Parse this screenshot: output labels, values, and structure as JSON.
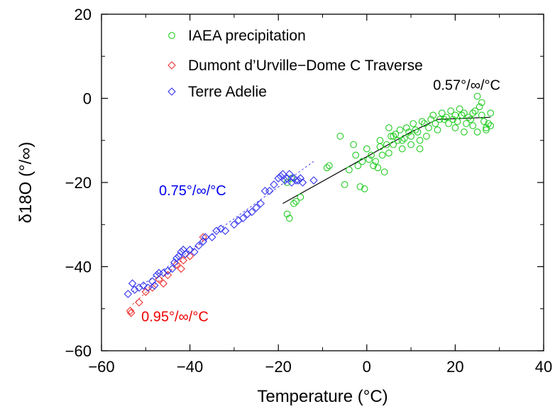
{
  "chart_data": {
    "type": "scatter",
    "title": "",
    "xlabel": "Temperature (°C)",
    "ylabel": "δ18O (°/∞)",
    "xlim": [
      -60,
      40
    ],
    "ylim": [
      -60,
      20
    ],
    "xticks": [
      -60,
      -40,
      -20,
      0,
      20,
      40
    ],
    "yticks": [
      -60,
      -40,
      -20,
      0,
      20
    ],
    "xtick_labels": [
      "−60",
      "−40",
      "−20",
      "0",
      "20",
      "40"
    ],
    "ytick_labels": [
      "−60",
      "−40",
      "−20",
      "0",
      "20"
    ],
    "legend_position": "top-center",
    "series": [
      {
        "name": "IAEA precipitation",
        "marker": "circle",
        "color": "#22cc22",
        "points": [
          [
            -18,
            -27.5
          ],
          [
            -17.5,
            -28.5
          ],
          [
            -16.5,
            -25
          ],
          [
            -16,
            -24.5
          ],
          [
            -15,
            -23.5
          ],
          [
            -18,
            -20
          ],
          [
            -17,
            -19
          ],
          [
            -9,
            -16.5
          ],
          [
            -8.5,
            -16
          ],
          [
            -6,
            -9
          ],
          [
            -5,
            -20.5
          ],
          [
            -4,
            -17
          ],
          [
            -3,
            -11
          ],
          [
            -2.5,
            -13.5
          ],
          [
            -2,
            -16
          ],
          [
            -1.5,
            -21
          ],
          [
            -1,
            -15
          ],
          [
            -0.5,
            -21.5
          ],
          [
            0,
            -12
          ],
          [
            0.5,
            -14.5
          ],
          [
            1,
            -13.5
          ],
          [
            1.5,
            -16
          ],
          [
            2,
            -15
          ],
          [
            2.5,
            -16.5
          ],
          [
            3,
            -11.5
          ],
          [
            3.5,
            -13.5
          ],
          [
            4,
            -17.5
          ],
          [
            4.5,
            -11
          ],
          [
            5,
            -13
          ],
          [
            5.5,
            -9
          ],
          [
            6,
            -11
          ],
          [
            6.5,
            -8.5
          ],
          [
            7,
            -10
          ],
          [
            7.5,
            -7.5
          ],
          [
            8,
            -10
          ],
          [
            8.5,
            -9.5
          ],
          [
            9,
            -7
          ],
          [
            9.5,
            -8
          ],
          [
            10,
            -9
          ],
          [
            10.5,
            -6
          ],
          [
            11,
            -7.5
          ],
          [
            11.5,
            -8
          ],
          [
            12,
            -10
          ],
          [
            12.5,
            -5.5
          ],
          [
            13,
            -6
          ],
          [
            13.5,
            -9
          ],
          [
            14,
            -7
          ],
          [
            14.5,
            -5
          ],
          [
            15,
            -4
          ],
          [
            15.5,
            -6
          ],
          [
            16,
            -7.5
          ],
          [
            16.5,
            -5
          ],
          [
            17,
            -3.5
          ],
          [
            17.5,
            -5
          ],
          [
            18,
            -4.5
          ],
          [
            18.5,
            -6
          ],
          [
            19,
            -3
          ],
          [
            19.5,
            -5
          ],
          [
            20,
            -4
          ],
          [
            20.5,
            -5.5
          ],
          [
            21,
            -2.5
          ],
          [
            21.5,
            -4
          ],
          [
            22,
            -3.5
          ],
          [
            22.5,
            -6
          ],
          [
            23,
            -4.5
          ],
          [
            23.5,
            -5
          ],
          [
            24,
            -6.5
          ],
          [
            24.5,
            -3
          ],
          [
            25,
            0.5
          ],
          [
            25.5,
            -2
          ],
          [
            26,
            -4
          ],
          [
            26.5,
            -5.5
          ],
          [
            27,
            -7
          ],
          [
            27.5,
            -6
          ],
          [
            28,
            -3.5
          ],
          [
            26,
            -1
          ],
          [
            25,
            -8
          ],
          [
            24,
            -3.5
          ],
          [
            27,
            -7.5
          ],
          [
            28,
            -6.5
          ],
          [
            22,
            -8
          ],
          [
            20,
            -7
          ],
          [
            12,
            -12
          ],
          [
            10,
            -11
          ],
          [
            6,
            -9
          ],
          [
            8,
            -12
          ],
          [
            3,
            -10
          ],
          [
            5,
            -7
          ]
        ]
      },
      {
        "name": "Dumont d’Urville−Dome C Traverse",
        "marker": "diamond",
        "color": "#ee3333",
        "points": [
          [
            -53.5,
            -50.5
          ],
          [
            -53.3,
            -51
          ],
          [
            -51.5,
            -48.5
          ],
          [
            -50,
            -46
          ],
          [
            -48.5,
            -45
          ],
          [
            -47,
            -43
          ],
          [
            -45,
            -42
          ],
          [
            -42,
            -40.5
          ],
          [
            -41.5,
            -38.5
          ],
          [
            -40,
            -37.5
          ],
          [
            -37,
            -33
          ],
          [
            -43,
            -39.5
          ],
          [
            -46,
            -44
          ]
        ]
      },
      {
        "name": "Terre Adelie",
        "marker": "diamond",
        "color": "#3333ee",
        "points": [
          [
            -54,
            -46.5
          ],
          [
            -53,
            -44
          ],
          [
            -52.5,
            -45.5
          ],
          [
            -51.5,
            -45
          ],
          [
            -50.5,
            -44.5
          ],
          [
            -49.5,
            -45
          ],
          [
            -48.5,
            -43.5
          ],
          [
            -48,
            -44.5
          ],
          [
            -47.5,
            -42
          ],
          [
            -47,
            -41.5
          ],
          [
            -46,
            -41.5
          ],
          [
            -45,
            -41
          ],
          [
            -44,
            -40.5
          ],
          [
            -43.5,
            -39
          ],
          [
            -43,
            -38
          ],
          [
            -42.5,
            -37.5
          ],
          [
            -42,
            -36.5
          ],
          [
            -41.5,
            -36
          ],
          [
            -41,
            -37
          ],
          [
            -40,
            -36
          ],
          [
            -39,
            -36.5
          ],
          [
            -38,
            -35
          ],
          [
            -37,
            -34
          ],
          [
            -36.5,
            -33
          ],
          [
            -35,
            -33
          ],
          [
            -34,
            -31.5
          ],
          [
            -33,
            -31
          ],
          [
            -32,
            -31.5
          ],
          [
            -30,
            -30
          ],
          [
            -29,
            -29
          ],
          [
            -28,
            -28.5
          ],
          [
            -27,
            -27.5
          ],
          [
            -26,
            -27
          ],
          [
            -25,
            -26
          ],
          [
            -24,
            -25
          ],
          [
            -23,
            -22
          ],
          [
            -22,
            -22
          ],
          [
            -21,
            -20.5
          ],
          [
            -20,
            -19
          ],
          [
            -19.5,
            -18.5
          ],
          [
            -19,
            -18
          ],
          [
            -18.5,
            -19.5
          ],
          [
            -18,
            -19
          ],
          [
            -17.5,
            -18
          ],
          [
            -17,
            -20
          ],
          [
            -16.5,
            -19
          ],
          [
            -16,
            -19.5
          ],
          [
            -15.5,
            -19.5
          ],
          [
            -15,
            -19
          ],
          [
            -14.5,
            -20
          ],
          [
            -12,
            -19.5
          ]
        ]
      }
    ],
    "fits": [
      {
        "color": "#000000",
        "style": "solid",
        "points": [
          [
            -19,
            -25
          ],
          [
            10,
            -8
          ],
          [
            16,
            -5
          ],
          [
            28,
            -4.5
          ]
        ]
      },
      {
        "color": "#3333ee",
        "style": "dashed",
        "points": [
          [
            -53,
            -46
          ],
          [
            -12,
            -15
          ]
        ]
      },
      {
        "color": "#ee3333",
        "style": "dashed",
        "points": [
          [
            -53,
            -49
          ],
          [
            -37,
            -34
          ]
        ]
      }
    ],
    "annotations": [
      {
        "text": "0.57°/∞/°C",
        "color": "#000000",
        "x": 15,
        "y": 2
      },
      {
        "text": "0.75°/∞/°C",
        "color": "#0000ee",
        "x": -47,
        "y": -23
      },
      {
        "text": "0.95°/∞/°C",
        "color": "#ee0000",
        "x": -51,
        "y": -53
      }
    ]
  }
}
